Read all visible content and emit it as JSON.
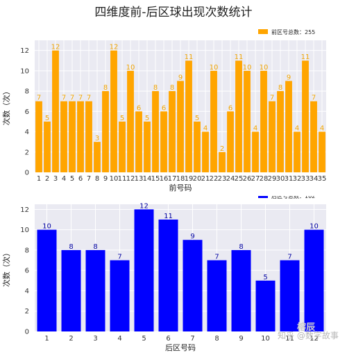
{
  "title": "四维度前-后区球出现次数统计",
  "watermark": "知乎 @数字故事",
  "watermark2": "榕辰",
  "chart_data": [
    {
      "type": "bar",
      "categories": [
        "1",
        "2",
        "3",
        "4",
        "5",
        "6",
        "7",
        "8",
        "9",
        "10",
        "11",
        "12",
        "13",
        "14",
        "15",
        "16",
        "17",
        "18",
        "19",
        "20",
        "21",
        "22",
        "23",
        "24",
        "25",
        "26",
        "27",
        "28",
        "29",
        "30",
        "31",
        "32",
        "33",
        "34",
        "35"
      ],
      "values": [
        7,
        5,
        12,
        7,
        7,
        7,
        7,
        3,
        8,
        12,
        5,
        10,
        6,
        5,
        8,
        6,
        8,
        9,
        11,
        5,
        4,
        10,
        2,
        6,
        11,
        10,
        4,
        10,
        7,
        8,
        9,
        4,
        11,
        7,
        4
      ],
      "xlabel": "前号码",
      "ylabel": "次数（次）",
      "ylim": [
        0,
        13
      ],
      "yticks": [
        0,
        2,
        4,
        6,
        8,
        10,
        12
      ],
      "legend": "前区号总数：255",
      "legend_position": "top-right",
      "color": "#ffa500",
      "grid": true
    },
    {
      "type": "bar",
      "categories": [
        "1",
        "2",
        "3",
        "4",
        "5",
        "6",
        "7",
        "8",
        "9",
        "10",
        "11",
        "12"
      ],
      "values": [
        10,
        8,
        8,
        7,
        12,
        11,
        9,
        7,
        8,
        5,
        7,
        10
      ],
      "xlabel": "后区号码",
      "ylabel": "次数（次）",
      "ylim": [
        0,
        12.5
      ],
      "yticks": [
        0,
        2,
        4,
        6,
        8,
        10,
        12
      ],
      "legend": "后区号总数：102",
      "legend_position": "top-right",
      "color": "#0000ff",
      "grid": true
    }
  ]
}
